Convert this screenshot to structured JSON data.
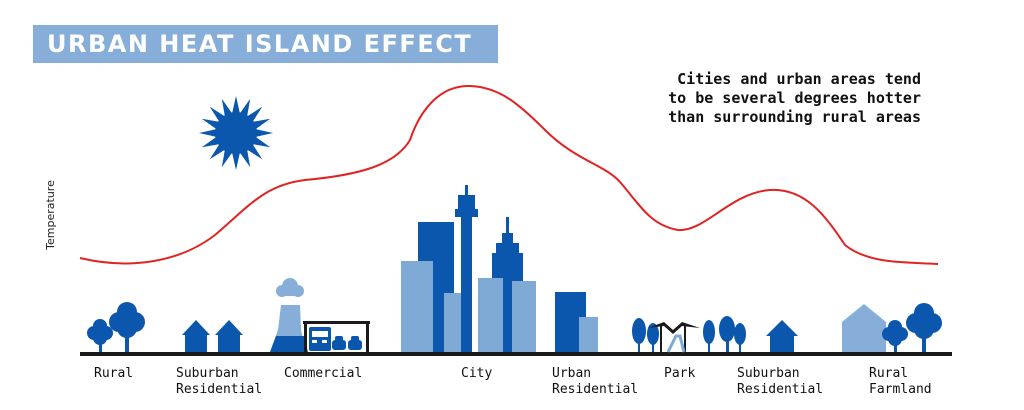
{
  "title": "URBAN HEAT ISLAND EFFECT",
  "caption": "Cities and urban areas tend to be several degrees hotter than surrounding rural areas",
  "ylabel": "Temperature",
  "zones": [
    {
      "line1": "Rural",
      "line2": ""
    },
    {
      "line1": "Suburban",
      "line2": "Residential"
    },
    {
      "line1": "Commercial",
      "line2": ""
    },
    {
      "line1": "City",
      "line2": ""
    },
    {
      "line1": "Urban",
      "line2": "Residential"
    },
    {
      "line1": "Park",
      "line2": ""
    },
    {
      "line1": "Suburban",
      "line2": "Residential"
    },
    {
      "line1": "Rural",
      "line2": "Farmland"
    }
  ],
  "colors": {
    "title_bg": "#86aed8",
    "dark_blue": "#0b57ad",
    "light_blue": "#7faad6",
    "curve": "#e02424",
    "ground": "#1a1a1a"
  },
  "icons": {
    "sun": "sun-icon",
    "trees": "tree-icon",
    "houses": "house-icon",
    "factory": "factory-icon",
    "cars": "car-icon",
    "buildings": "skyscraper-icon",
    "tower": "tower-icon",
    "pavilion": "pavilion-icon",
    "barn": "barn-icon"
  }
}
